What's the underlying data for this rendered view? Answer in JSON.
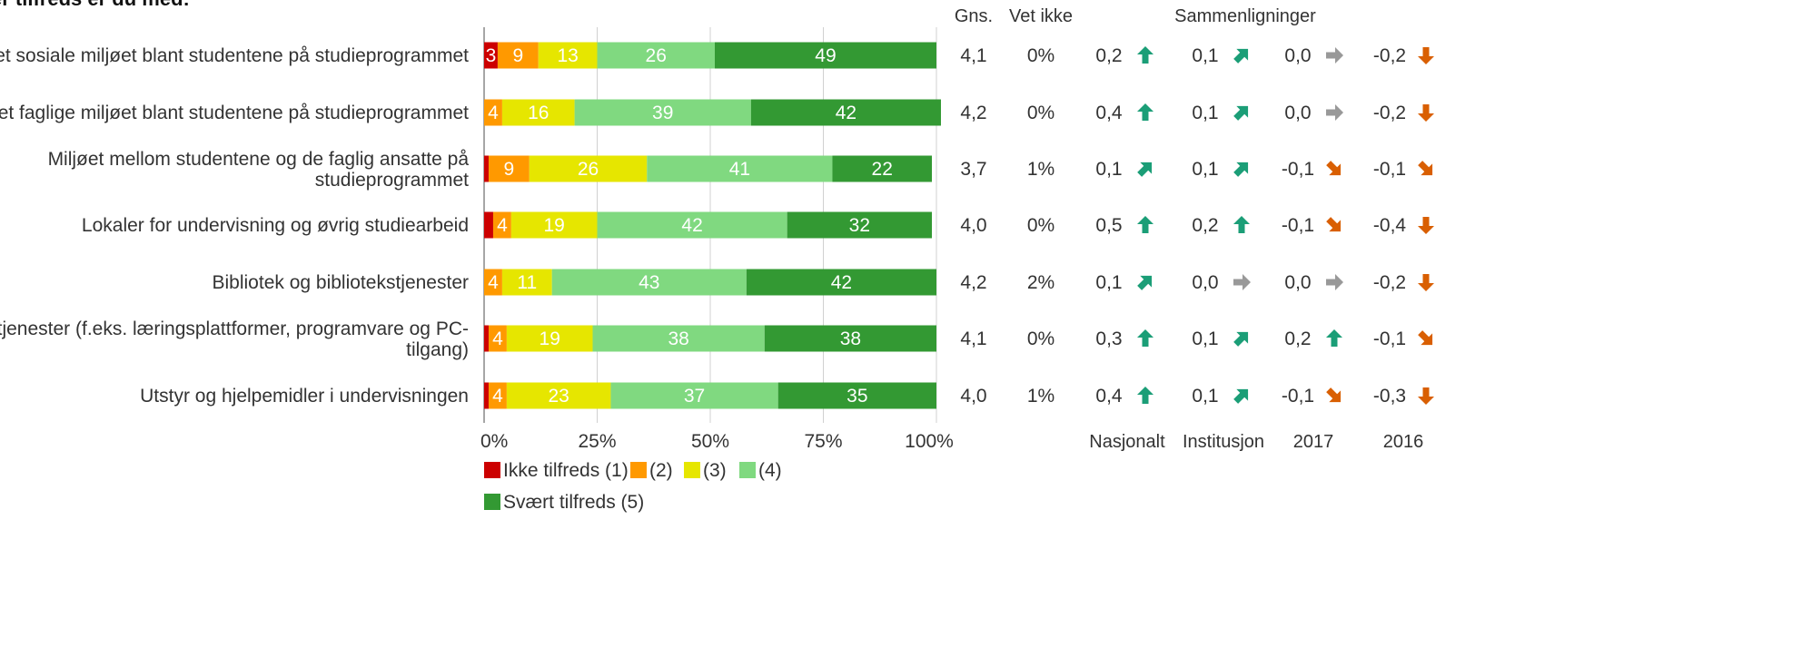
{
  "title_partial": "er tilfreds er du med:",
  "headers": {
    "mean": "Gns.",
    "dontknow": "Vet ikke",
    "comparisons": "Sammenligninger"
  },
  "comparison_labels": [
    "Nasjonalt",
    "Institusjon",
    "2017",
    "2016"
  ],
  "colors": {
    "c1": "#cc0000",
    "c2": "#ff9900",
    "c3": "#e6e600",
    "c4": "#80d980",
    "c5": "#339933",
    "up": "#1b9e77",
    "down": "#d95f02",
    "flat": "#999999"
  },
  "chart_data": {
    "type": "bar",
    "orientation": "horizontal",
    "stacked": true,
    "xlim": [
      0,
      100
    ],
    "x_ticks": [
      "0%",
      "25%",
      "50%",
      "75%",
      "100%"
    ],
    "grid": true,
    "legend_position": "bottom",
    "legend": [
      "Ikke tilfreds (1)",
      "(2)",
      "(3)",
      "(4)",
      "Svært tilfreds (5)"
    ],
    "categories": [
      "Det sosiale miljøet blant studentene på studieprogrammet",
      "Det faglige miljøet blant studentene på studieprogrammet",
      "Miljøet mellom studentene og de faglig ansatte på studieprogrammet",
      "Lokaler for undervisning og øvrig studiearbeid",
      "Bibliotek og bibliotekstjenester",
      "IKT-tjenester (f.eks. læringsplattformer, programvare og PC-tilgang)",
      "Utstyr og hjelpemidler i undervisningen"
    ],
    "category_lines": [
      [
        "Det sosiale miljøet blant studentene på studieprogrammet"
      ],
      [
        "Det faglige miljøet blant studentene på studieprogrammet"
      ],
      [
        "Miljøet mellom studentene og de faglig ansatte på",
        "studieprogrammet"
      ],
      [
        "Lokaler for undervisning og øvrig studiearbeid"
      ],
      [
        "Bibliotek og bibliotekstjenester"
      ],
      [
        "IKT-tjenester (f.eks. læringsplattformer, programvare og PC-",
        "tilgang)"
      ],
      [
        "Utstyr og hjelpemidler i undervisningen"
      ]
    ],
    "series": [
      {
        "name": "Ikke tilfreds (1)",
        "values": [
          3,
          0,
          1,
          2,
          0,
          1,
          1
        ],
        "labels": [
          "3",
          "",
          "",
          "",
          "",
          "",
          ""
        ]
      },
      {
        "name": "(2)",
        "values": [
          9,
          4,
          9,
          4,
          4,
          4,
          4
        ],
        "labels": [
          "9",
          "4",
          "9",
          "4",
          "4",
          "4",
          "4"
        ]
      },
      {
        "name": "(3)",
        "values": [
          13,
          16,
          26,
          19,
          11,
          19,
          23
        ],
        "labels": [
          "13",
          "16",
          "26",
          "19",
          "11",
          "19",
          "23"
        ]
      },
      {
        "name": "(4)",
        "values": [
          26,
          39,
          41,
          42,
          43,
          38,
          37
        ],
        "labels": [
          "26",
          "39",
          "41",
          "42",
          "43",
          "38",
          "37"
        ]
      },
      {
        "name": "Svært tilfreds (5)",
        "values": [
          49,
          42,
          22,
          32,
          42,
          38,
          35
        ],
        "labels": [
          "49",
          "42",
          "22",
          "32",
          "42",
          "38",
          "35"
        ]
      }
    ],
    "mean": [
      "4,1",
      "4,2",
      "3,7",
      "4,0",
      "4,2",
      "4,1",
      "4,0"
    ],
    "dont_know": [
      "0%",
      "0%",
      "1%",
      "0%",
      "2%",
      "0%",
      "1%"
    ],
    "comparisons": [
      [
        {
          "v": "0,2",
          "t": "up"
        },
        {
          "v": "0,1",
          "t": "upright"
        },
        {
          "v": "0,0",
          "t": "flat"
        },
        {
          "v": "-0,2",
          "t": "down"
        }
      ],
      [
        {
          "v": "0,4",
          "t": "up"
        },
        {
          "v": "0,1",
          "t": "upright"
        },
        {
          "v": "0,0",
          "t": "flat"
        },
        {
          "v": "-0,2",
          "t": "down"
        }
      ],
      [
        {
          "v": "0,1",
          "t": "upright"
        },
        {
          "v": "0,1",
          "t": "upright"
        },
        {
          "v": "-0,1",
          "t": "downright"
        },
        {
          "v": "-0,1",
          "t": "downright"
        }
      ],
      [
        {
          "v": "0,5",
          "t": "up"
        },
        {
          "v": "0,2",
          "t": "up"
        },
        {
          "v": "-0,1",
          "t": "downright"
        },
        {
          "v": "-0,4",
          "t": "down"
        }
      ],
      [
        {
          "v": "0,1",
          "t": "upright"
        },
        {
          "v": "0,0",
          "t": "flat"
        },
        {
          "v": "0,0",
          "t": "flat"
        },
        {
          "v": "-0,2",
          "t": "down"
        }
      ],
      [
        {
          "v": "0,3",
          "t": "up"
        },
        {
          "v": "0,1",
          "t": "upright"
        },
        {
          "v": "0,2",
          "t": "up"
        },
        {
          "v": "-0,1",
          "t": "downright"
        }
      ],
      [
        {
          "v": "0,4",
          "t": "up"
        },
        {
          "v": "0,1",
          "t": "upright"
        },
        {
          "v": "-0,1",
          "t": "downright"
        },
        {
          "v": "-0,3",
          "t": "down"
        }
      ]
    ]
  }
}
